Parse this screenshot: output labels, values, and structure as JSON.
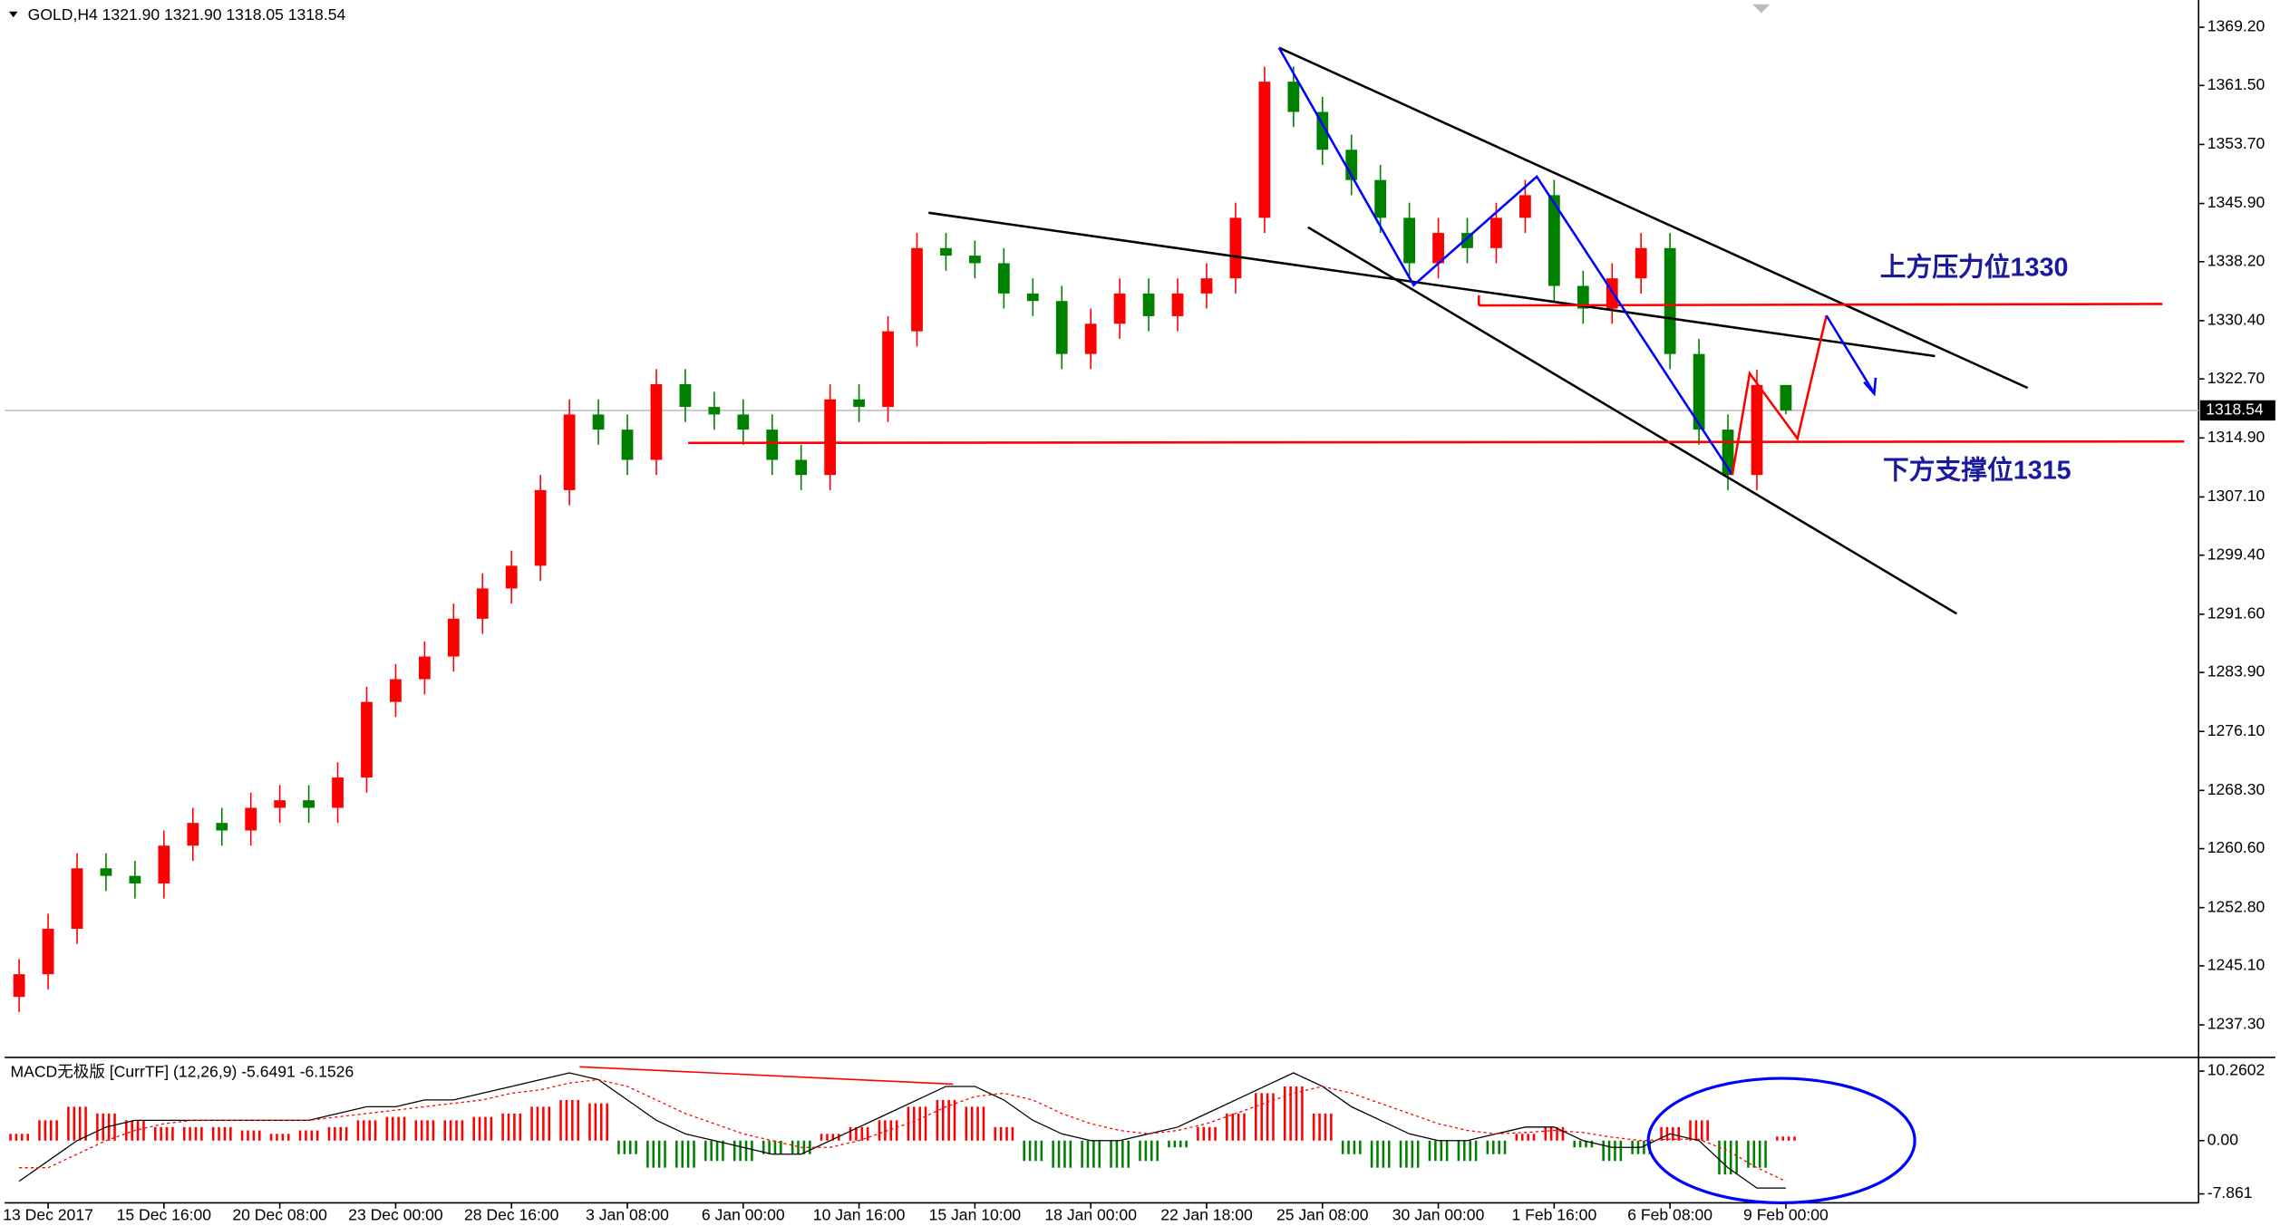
{
  "chart_data": {
    "type": "candlestick",
    "title": "GOLD,H4  1321.90 1321.90 1318.05 1318.54",
    "up_color": "#ff0000",
    "down_color": "#008000",
    "categories": [
      null,
      "13 Dec 2017",
      null,
      null,
      null,
      "15 Dec 16:00",
      null,
      null,
      null,
      "20 Dec 08:00",
      null,
      null,
      null,
      "23 Dec 00:00",
      null,
      null,
      null,
      "28 Dec 16:00",
      null,
      null,
      null,
      "3 Jan 08:00",
      null,
      null,
      null,
      "6 Jan 00:00",
      null,
      null,
      null,
      "10 Jan 16:00",
      null,
      null,
      null,
      "15 Jan 10:00",
      null,
      null,
      null,
      "18 Jan 00:00",
      null,
      null,
      null,
      "22 Jan 18:00",
      null,
      null,
      null,
      "25 Jan 08:00",
      null,
      null,
      null,
      "30 Jan 00:00",
      null,
      null,
      null,
      "1 Feb 16:00",
      null,
      null,
      null,
      "6 Feb 08:00",
      null,
      null,
      null,
      "9 Feb 00:00"
    ],
    "open": [
      1241,
      1244,
      1250,
      1258,
      1257,
      1256,
      1261,
      1264,
      1263,
      1266,
      1267,
      1266,
      1270,
      1280,
      1283,
      1286,
      1291,
      1295,
      1298,
      1308,
      1318,
      1316,
      1312,
      1322,
      1319,
      1318,
      1316,
      1312,
      1310,
      1320,
      1319,
      1329,
      1340,
      1339,
      1338,
      1334,
      1333,
      1326,
      1330,
      1334,
      1331,
      1334,
      1336,
      1344,
      1362,
      1358,
      1353,
      1349,
      1344,
      1338,
      1342,
      1340,
      1344,
      1347,
      1335,
      1332,
      1336,
      1340,
      1326,
      1316,
      1310,
      1321.9
    ],
    "high": [
      1246,
      1252,
      1260,
      1260,
      1259,
      1263,
      1266,
      1266,
      1268,
      1269,
      1269,
      1272,
      1282,
      1285,
      1288,
      1293,
      1297,
      1300,
      1310,
      1320,
      1320,
      1318,
      1324,
      1324,
      1321,
      1320,
      1318,
      1314,
      1322,
      1322,
      1331,
      1342,
      1342,
      1341,
      1340,
      1336,
      1335,
      1332,
      1336,
      1336,
      1336,
      1338,
      1346,
      1364,
      1364,
      1360,
      1355,
      1351,
      1346,
      1344,
      1344,
      1346,
      1349,
      1349,
      1337,
      1338,
      1342,
      1342,
      1328,
      1318,
      1323.9,
      1321.9
    ],
    "low": [
      1239,
      1242,
      1248,
      1255,
      1254,
      1254,
      1259,
      1261,
      1261,
      1264,
      1264,
      1264,
      1268,
      1278,
      1281,
      1284,
      1289,
      1293,
      1296,
      1306,
      1314,
      1310,
      1310,
      1317,
      1316,
      1314,
      1310,
      1308,
      1308,
      1317,
      1317,
      1327,
      1337,
      1336,
      1332,
      1331,
      1324,
      1324,
      1328,
      1329,
      1329,
      1332,
      1334,
      1342,
      1356,
      1351,
      1347,
      1342,
      1336,
      1336,
      1338,
      1338,
      1342,
      1333,
      1330,
      1330,
      1334,
      1324,
      1314,
      1308,
      1308,
      1318.05
    ],
    "close": [
      1244,
      1250,
      1258,
      1257,
      1256,
      1261,
      1264,
      1263,
      1266,
      1267,
      1266,
      1270,
      1280,
      1283,
      1286,
      1291,
      1295,
      1298,
      1308,
      1318,
      1316,
      1312,
      1322,
      1319,
      1318,
      1316,
      1312,
      1310,
      1320,
      1319,
      1329,
      1340,
      1339,
      1338,
      1334,
      1333,
      1326,
      1330,
      1334,
      1331,
      1334,
      1336,
      1344,
      1362,
      1358,
      1353,
      1349,
      1344,
      1338,
      1342,
      1340,
      1344,
      1347,
      1335,
      1332,
      1336,
      1340,
      1326,
      1316,
      1310,
      1321.9,
      1318.54
    ],
    "last_price": 1318.54,
    "ylim": [
      1233.1,
      1372.8
    ],
    "yticks": [
      {
        "value": 1369.2,
        "label": "1369.20"
      },
      {
        "value": 1361.5,
        "label": "1361.50"
      },
      {
        "value": 1353.7,
        "label": "1353.70"
      },
      {
        "value": 1345.9,
        "label": "1345.90"
      },
      {
        "value": 1338.2,
        "label": "1338.20"
      },
      {
        "value": 1330.4,
        "label": "1330.40"
      },
      {
        "value": 1322.7,
        "label": "1322.70"
      },
      {
        "value": 1314.9,
        "label": "1314.90"
      },
      {
        "value": 1307.1,
        "label": "1307.10"
      },
      {
        "value": 1299.4,
        "label": "1299.40"
      },
      {
        "value": 1291.6,
        "label": "1291.60"
      },
      {
        "value": 1283.9,
        "label": "1283.90"
      },
      {
        "value": 1276.1,
        "label": "1276.10"
      },
      {
        "value": 1268.3,
        "label": "1268.30"
      },
      {
        "value": 1260.6,
        "label": "1260.60"
      },
      {
        "value": 1252.8,
        "label": "1252.80"
      },
      {
        "value": 1245.1,
        "label": "1245.10"
      },
      {
        "value": 1237.3,
        "label": "1237.30"
      }
    ],
    "annotations": [
      "上方压力位1330",
      "下方支撑位1315"
    ],
    "indicator": {
      "title": "MACD无极版 [CurrTF] (12,26,9) -5.6491 -6.1526",
      "histogram": [
        1,
        3,
        5,
        4,
        3,
        2,
        2,
        2,
        1.5,
        1,
        1.5,
        2,
        3,
        3.5,
        3,
        3,
        3.5,
        4,
        5,
        6,
        5.5,
        -2,
        -4,
        -4,
        -3,
        -3,
        -2,
        -2,
        1,
        2,
        3,
        5,
        6,
        5,
        2,
        -3,
        -4,
        -4,
        -4,
        -3,
        -1,
        2,
        4,
        7,
        8,
        4,
        -2,
        -4,
        -4,
        -3,
        -3,
        -2,
        1,
        2,
        -1,
        -3,
        -2,
        2,
        3,
        -5,
        -4,
        0.6
      ],
      "line": [
        -6,
        -3,
        0,
        2,
        3,
        3,
        3,
        3,
        3,
        3,
        3,
        4,
        5,
        5,
        6,
        6,
        7,
        8,
        9,
        10,
        9,
        6,
        3,
        1,
        0,
        -1,
        -2,
        -2,
        0,
        2,
        4,
        6,
        8,
        8,
        6,
        3,
        1,
        0,
        0,
        1,
        2,
        4,
        6,
        8,
        10,
        8,
        5,
        3,
        1,
        0,
        0,
        1,
        2,
        2,
        0,
        -1,
        -1,
        1,
        0,
        -4,
        -7,
        -7
      ],
      "signal": [
        -4,
        -4,
        -2,
        0,
        1.5,
        2.5,
        3,
        3,
        3,
        3,
        3,
        3.5,
        4,
        4.5,
        5,
        5.5,
        6,
        7,
        7.5,
        8.5,
        9,
        8,
        6,
        4,
        2.5,
        1,
        0,
        -1,
        -1,
        0,
        1.5,
        3,
        5,
        6.5,
        7,
        6,
        4,
        2.5,
        1.5,
        1,
        1.5,
        2.5,
        4,
        5.5,
        7,
        8,
        7,
        5.5,
        4,
        2.5,
        1.5,
        1,
        1.2,
        1.5,
        1.2,
        0.5,
        0,
        0.2,
        0.2,
        -1.5,
        -4,
        -6
      ],
      "ylim": [
        -8.97,
        12.18
      ],
      "yticks": [
        10.2602,
        {
          "value": 0,
          "label": "0.00"
        },
        -7.861
      ]
    }
  }
}
